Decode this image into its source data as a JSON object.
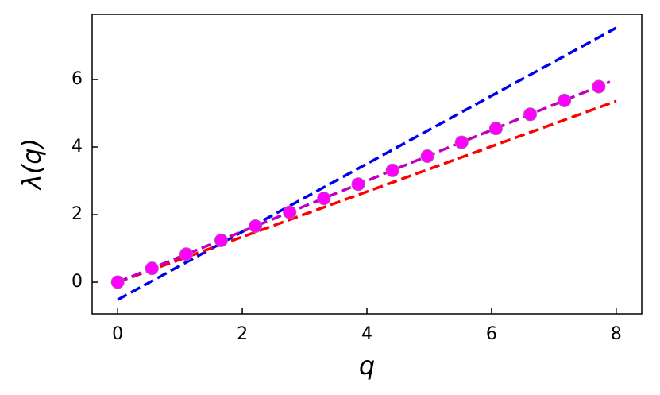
{
  "chart_data": {
    "type": "line",
    "xlabel": "q",
    "ylabel": "λ(q)",
    "xlim": [
      -0.41,
      8.41
    ],
    "ylim": [
      -0.94,
      7.93
    ],
    "xticks": [
      0,
      2,
      4,
      6,
      8
    ],
    "yticks": [
      0,
      2,
      4,
      6
    ],
    "series": [
      {
        "color": "#0000ee",
        "style": "dashed",
        "x": [
          0,
          8
        ],
        "values": [
          -0.52,
          7.53
        ]
      },
      {
        "color": "#ff0000",
        "style": "dashed",
        "x": [
          0,
          8
        ],
        "values": [
          0,
          5.36
        ]
      },
      {
        "color": "#c000c0",
        "style": "dashed",
        "x": [
          0,
          7.9
        ],
        "values": [
          0,
          5.93
        ]
      },
      {
        "color": "#ff00ff",
        "style": "markers",
        "x": [
          0,
          0.55,
          1.1,
          1.66,
          2.21,
          2.76,
          3.31,
          3.86,
          4.41,
          4.97,
          5.52,
          6.07,
          6.62,
          7.17,
          7.72
        ],
        "values": [
          0,
          0.41,
          0.83,
          1.24,
          1.66,
          2.07,
          2.48,
          2.9,
          3.31,
          3.73,
          4.14,
          4.55,
          4.97,
          5.38,
          5.79
        ]
      }
    ]
  }
}
